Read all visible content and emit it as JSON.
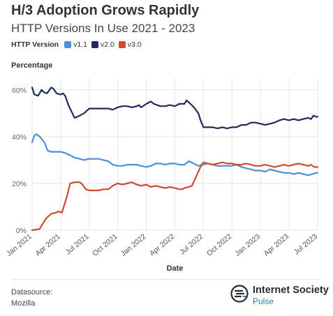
{
  "header": {
    "title": "H/3 Adoption Grows Rapidly",
    "subtitle": "HTTP Versions In Use 2021 - 2023"
  },
  "legend": {
    "title": "HTTP Version",
    "items": [
      {
        "label": "v1.1",
        "color": "#4a90d9"
      },
      {
        "label": "v2.0",
        "color": "#1d2a5c"
      },
      {
        "label": "v3.0",
        "color": "#cd4a2e"
      }
    ]
  },
  "footer": {
    "datasource_label": "Datasource:",
    "datasource_value": "Mozilla",
    "brand_name": "Internet Society",
    "brand_sub": "Pulse"
  },
  "chart_data": {
    "type": "line",
    "xlabel": "Date",
    "ylabel": "Percentage",
    "x_unit": "months since Jan 2021",
    "xlim": [
      "2021-01",
      "2023-07"
    ],
    "ylim": [
      0,
      65
    ],
    "grid": true,
    "legend_position": "top-left",
    "x_ticks": [
      {
        "month": "2021-01",
        "label": "Jan 2021"
      },
      {
        "month": "2021-04",
        "label": "Apr 2021"
      },
      {
        "month": "2021-07",
        "label": "Jul 2021"
      },
      {
        "month": "2021-10",
        "label": "Oct 2021"
      },
      {
        "month": "2022-01",
        "label": "Jan 2022"
      },
      {
        "month": "2022-04",
        "label": "Apr 2022"
      },
      {
        "month": "2022-07",
        "label": "Jul 2022"
      },
      {
        "month": "2022-10",
        "label": "Oct 2022"
      },
      {
        "month": "2023-01",
        "label": "Jan 2023"
      },
      {
        "month": "2023-04",
        "label": "Apr 2023"
      },
      {
        "month": "2023-07",
        "label": "Jul 2023"
      }
    ],
    "y_ticks": [
      {
        "value": 0,
        "label": "0%"
      },
      {
        "value": 20,
        "label": "20%"
      },
      {
        "value": 40,
        "label": "40%"
      },
      {
        "value": 60,
        "label": "60%"
      }
    ],
    "series": [
      {
        "name": "v2.0",
        "color": "#1d2a5c",
        "points": [
          [
            "2021-01-01",
            61
          ],
          [
            "2021-01-08",
            58
          ],
          [
            "2021-01-20",
            57.5
          ],
          [
            "2021-02-01",
            60
          ],
          [
            "2021-02-08",
            59
          ],
          [
            "2021-02-18",
            58.5
          ],
          [
            "2021-03-01",
            61
          ],
          [
            "2021-03-08",
            60.5
          ],
          [
            "2021-03-18",
            58.5
          ],
          [
            "2021-04-01",
            58
          ],
          [
            "2021-04-08",
            58.5
          ],
          [
            "2021-04-15",
            57.5
          ],
          [
            "2021-04-27",
            53
          ],
          [
            "2021-05-15",
            48
          ],
          [
            "2021-06-01",
            49
          ],
          [
            "2021-06-15",
            50
          ],
          [
            "2021-07-01",
            52
          ],
          [
            "2021-08-01",
            52
          ],
          [
            "2021-09-01",
            52
          ],
          [
            "2021-09-15",
            51.5
          ],
          [
            "2021-10-01",
            52.5
          ],
          [
            "2021-10-15",
            53
          ],
          [
            "2021-11-01",
            53
          ],
          [
            "2021-11-15",
            52.5
          ],
          [
            "2021-12-01",
            53
          ],
          [
            "2021-12-08",
            53.5
          ],
          [
            "2021-12-15",
            52.5
          ],
          [
            "2022-01-01",
            54
          ],
          [
            "2022-01-15",
            55
          ],
          [
            "2022-01-25",
            54
          ],
          [
            "2022-02-15",
            53
          ],
          [
            "2022-03-01",
            53
          ],
          [
            "2022-03-15",
            53.5
          ],
          [
            "2022-04-01",
            53
          ],
          [
            "2022-04-15",
            54
          ],
          [
            "2022-05-01",
            54
          ],
          [
            "2022-05-08",
            55.5
          ],
          [
            "2022-05-20",
            54
          ],
          [
            "2022-06-01",
            52.5
          ],
          [
            "2022-06-15",
            50
          ],
          [
            "2022-06-22",
            47
          ],
          [
            "2022-07-01",
            44
          ],
          [
            "2022-08-01",
            44
          ],
          [
            "2022-08-15",
            43.5
          ],
          [
            "2022-09-01",
            44
          ],
          [
            "2022-09-15",
            43.5
          ],
          [
            "2022-10-01",
            44
          ],
          [
            "2022-10-15",
            44
          ],
          [
            "2022-11-01",
            45
          ],
          [
            "2022-11-15",
            45
          ],
          [
            "2022-12-01",
            46
          ],
          [
            "2022-12-15",
            46
          ],
          [
            "2023-01-01",
            45.5
          ],
          [
            "2023-01-15",
            45
          ],
          [
            "2023-02-01",
            45.5
          ],
          [
            "2023-02-15",
            46
          ],
          [
            "2023-03-01",
            47
          ],
          [
            "2023-03-15",
            47.5
          ],
          [
            "2023-04-01",
            47
          ],
          [
            "2023-04-15",
            47.5
          ],
          [
            "2023-05-01",
            47
          ],
          [
            "2023-05-15",
            47.5
          ],
          [
            "2023-06-01",
            48
          ],
          [
            "2023-06-10",
            47.5
          ],
          [
            "2023-06-18",
            49
          ],
          [
            "2023-06-25",
            48.5
          ],
          [
            "2023-07-01",
            48.5
          ]
        ]
      },
      {
        "name": "v1.1",
        "color": "#4a90d9",
        "points": [
          [
            "2021-01-01",
            37.5
          ],
          [
            "2021-01-08",
            40.5
          ],
          [
            "2021-01-15",
            41
          ],
          [
            "2021-01-25",
            40
          ],
          [
            "2021-02-10",
            37.5
          ],
          [
            "2021-02-20",
            34
          ],
          [
            "2021-03-01",
            33.5
          ],
          [
            "2021-04-01",
            33.5
          ],
          [
            "2021-04-15",
            33
          ],
          [
            "2021-05-01",
            32
          ],
          [
            "2021-05-15",
            31
          ],
          [
            "2021-06-01",
            30.5
          ],
          [
            "2021-06-15",
            30
          ],
          [
            "2021-07-01",
            30.5
          ],
          [
            "2021-08-01",
            30.5
          ],
          [
            "2021-08-15",
            30
          ],
          [
            "2021-09-01",
            29.5
          ],
          [
            "2021-09-15",
            28
          ],
          [
            "2021-10-01",
            27.5
          ],
          [
            "2021-10-15",
            27.5
          ],
          [
            "2021-11-01",
            28
          ],
          [
            "2021-11-15",
            28
          ],
          [
            "2021-12-01",
            28
          ],
          [
            "2021-12-15",
            27.5
          ],
          [
            "2022-01-01",
            27
          ],
          [
            "2022-01-15",
            27.5
          ],
          [
            "2022-02-01",
            28.5
          ],
          [
            "2022-02-15",
            28.5
          ],
          [
            "2022-03-01",
            28
          ],
          [
            "2022-03-15",
            28.5
          ],
          [
            "2022-04-01",
            28.5
          ],
          [
            "2022-04-15",
            28
          ],
          [
            "2022-05-01",
            28
          ],
          [
            "2022-05-15",
            29.5
          ],
          [
            "2022-06-01",
            28.5
          ],
          [
            "2022-06-15",
            27.5
          ],
          [
            "2022-07-01",
            28
          ],
          [
            "2022-07-15",
            28.5
          ],
          [
            "2022-08-01",
            28
          ],
          [
            "2022-08-15",
            27.5
          ],
          [
            "2022-09-01",
            27.5
          ],
          [
            "2022-10-01",
            27.5
          ],
          [
            "2022-10-15",
            28
          ],
          [
            "2022-11-01",
            27
          ],
          [
            "2022-11-15",
            26.5
          ],
          [
            "2022-12-01",
            26
          ],
          [
            "2022-12-15",
            25.5
          ],
          [
            "2023-01-01",
            25.5
          ],
          [
            "2023-01-15",
            25
          ],
          [
            "2023-02-01",
            26
          ],
          [
            "2023-02-15",
            25.5
          ],
          [
            "2023-03-01",
            25
          ],
          [
            "2023-03-15",
            24.5
          ],
          [
            "2023-04-01",
            24.5
          ],
          [
            "2023-04-15",
            24
          ],
          [
            "2023-05-01",
            24.5
          ],
          [
            "2023-05-15",
            24
          ],
          [
            "2023-06-01",
            23.5
          ],
          [
            "2023-06-15",
            24
          ],
          [
            "2023-06-25",
            24.5
          ],
          [
            "2023-07-01",
            24.5
          ]
        ]
      },
      {
        "name": "v3.0",
        "color": "#cd4a2e",
        "points": [
          [
            "2021-01-01",
            0
          ],
          [
            "2021-01-25",
            0.5
          ],
          [
            "2021-02-01",
            2
          ],
          [
            "2021-02-15",
            5
          ],
          [
            "2021-03-01",
            7
          ],
          [
            "2021-03-15",
            7.5
          ],
          [
            "2021-03-25",
            8
          ],
          [
            "2021-04-05",
            7.5
          ],
          [
            "2021-04-20",
            14
          ],
          [
            "2021-05-01",
            20
          ],
          [
            "2021-05-15",
            20.5
          ],
          [
            "2021-06-01",
            20.5
          ],
          [
            "2021-06-10",
            19.5
          ],
          [
            "2021-06-20",
            17.5
          ],
          [
            "2021-07-01",
            17
          ],
          [
            "2021-08-01",
            17
          ],
          [
            "2021-08-15",
            17.5
          ],
          [
            "2021-09-01",
            17.5
          ],
          [
            "2021-09-15",
            19
          ],
          [
            "2021-10-01",
            20
          ],
          [
            "2021-10-15",
            19.5
          ],
          [
            "2021-11-01",
            20
          ],
          [
            "2021-11-15",
            20.5
          ],
          [
            "2021-12-01",
            19.5
          ],
          [
            "2021-12-15",
            19
          ],
          [
            "2022-01-01",
            19.5
          ],
          [
            "2022-01-15",
            18.5
          ],
          [
            "2022-02-01",
            19
          ],
          [
            "2022-02-15",
            18.5
          ],
          [
            "2022-03-01",
            18
          ],
          [
            "2022-03-15",
            18.5
          ],
          [
            "2022-04-01",
            18
          ],
          [
            "2022-04-15",
            17.5
          ],
          [
            "2022-04-25",
            17.5
          ],
          [
            "2022-05-01",
            18
          ],
          [
            "2022-05-15",
            18.5
          ],
          [
            "2022-05-25",
            19
          ],
          [
            "2022-06-05",
            22
          ],
          [
            "2022-06-15",
            25
          ],
          [
            "2022-06-25",
            28
          ],
          [
            "2022-07-01",
            29
          ],
          [
            "2022-07-15",
            28.5
          ],
          [
            "2022-08-01",
            28
          ],
          [
            "2022-08-15",
            28.5
          ],
          [
            "2022-09-01",
            29
          ],
          [
            "2022-09-15",
            28.5
          ],
          [
            "2022-10-01",
            28.5
          ],
          [
            "2022-10-15",
            28
          ],
          [
            "2022-11-01",
            28
          ],
          [
            "2022-11-15",
            28.5
          ],
          [
            "2022-12-01",
            28
          ],
          [
            "2022-12-15",
            27.5
          ],
          [
            "2023-01-01",
            27.5
          ],
          [
            "2023-01-15",
            28
          ],
          [
            "2023-02-01",
            27.5
          ],
          [
            "2023-02-15",
            27
          ],
          [
            "2023-03-01",
            27.5
          ],
          [
            "2023-03-15",
            28
          ],
          [
            "2023-04-01",
            27.5
          ],
          [
            "2023-04-15",
            28
          ],
          [
            "2023-05-01",
            28.5
          ],
          [
            "2023-05-15",
            28
          ],
          [
            "2023-06-01",
            27.5
          ],
          [
            "2023-06-10",
            28
          ],
          [
            "2023-06-20",
            27
          ],
          [
            "2023-07-01",
            27
          ]
        ]
      }
    ]
  }
}
